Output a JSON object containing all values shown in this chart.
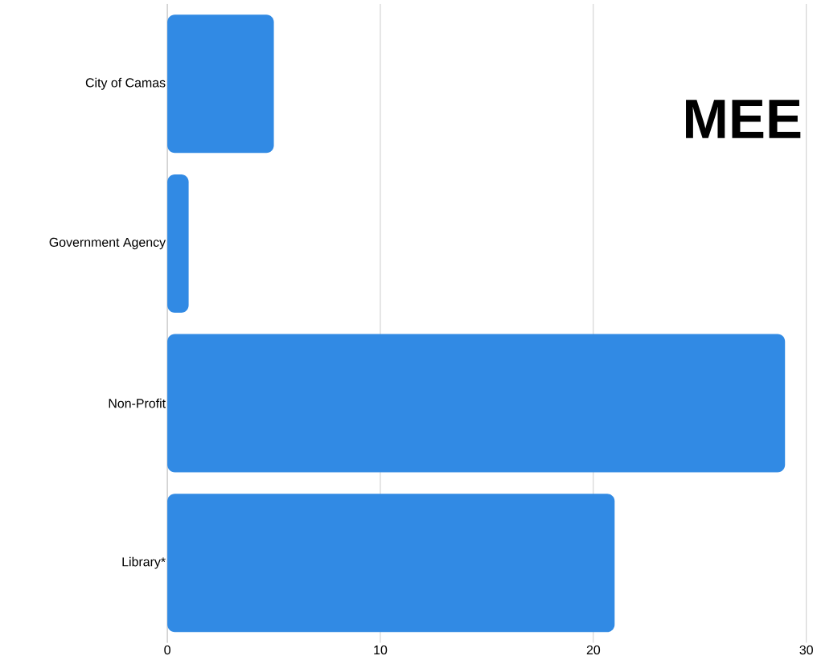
{
  "chart_data": {
    "type": "bar",
    "orientation": "horizontal",
    "categories": [
      "City of Camas",
      "Government Agency",
      "Non-Profit",
      "Library*"
    ],
    "values": [
      5,
      1,
      29,
      21
    ],
    "color": "#318ae4",
    "xlim": [
      0,
      30
    ],
    "xticks": [
      0,
      10,
      20,
      30
    ],
    "grid": "x",
    "annotations": [
      "MEE"
    ]
  }
}
